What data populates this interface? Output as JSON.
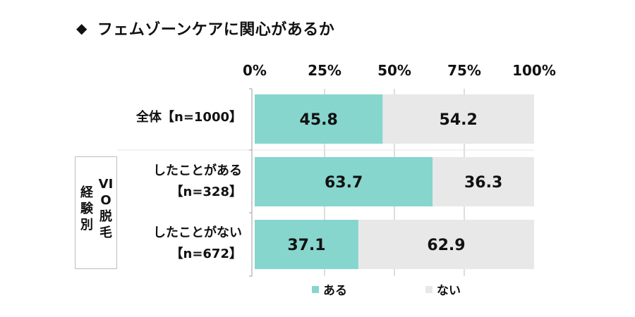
{
  "title": "フェムゾーンケアに関心があるか",
  "title_icon": "diamond-icon",
  "chart_data": {
    "type": "bar",
    "orientation": "horizontal-stacked-100",
    "x_ticks": [
      "0%",
      "25%",
      "50%",
      "75%",
      "100%"
    ],
    "xlim": [
      0,
      100
    ],
    "categories": [
      "全体【n=1000】",
      "したことがある【n=328】",
      "したことがない【n=672】"
    ],
    "group_label": "VIO脱毛経験別",
    "group_label_col1": "VIO脱毛",
    "group_label_col2": "経験別",
    "series": [
      {
        "name": "ある",
        "values": [
          45.8,
          63.7,
          37.1
        ],
        "labels": [
          "45.8",
          "63.7",
          "37.1"
        ],
        "color": "#86d6ce"
      },
      {
        "name": "ない",
        "values": [
          54.2,
          36.3,
          62.9
        ],
        "labels": [
          "54.2",
          "36.3",
          "62.9"
        ],
        "color": "#e8e8e8"
      }
    ],
    "grid": true,
    "legend": "bottom"
  },
  "rows": [
    {
      "line1": "全体【n=1000】",
      "line2": ""
    },
    {
      "line1": "したことがある",
      "line2": "【n=328】"
    },
    {
      "line1": "したことがない",
      "line2": "【n=672】"
    }
  ],
  "legend": {
    "item1": "ある",
    "item2": "ない"
  }
}
